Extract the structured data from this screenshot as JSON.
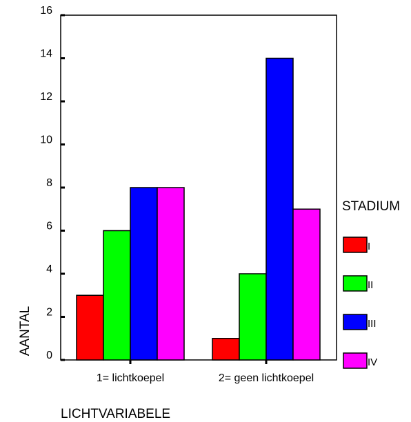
{
  "chart_data": {
    "type": "bar",
    "xlabel": "LICHTVARIABELE",
    "ylabel": "AANTAL",
    "ylim": [
      0,
      16
    ],
    "yticks": [
      0,
      2,
      4,
      6,
      8,
      10,
      12,
      14,
      16
    ],
    "categories": [
      "1= lichtkoepel",
      "2= geen lichtkoepel"
    ],
    "legend_title": "STADIUM",
    "legend_position": "right",
    "grid": false,
    "series": [
      {
        "name": "I",
        "color": "#ff0000",
        "values": [
          3,
          1
        ]
      },
      {
        "name": "II",
        "color": "#00ff00",
        "values": [
          6,
          4
        ]
      },
      {
        "name": "III",
        "color": "#0000ff",
        "values": [
          8,
          14
        ]
      },
      {
        "name": "IV",
        "color": "#ff00ff",
        "values": [
          8,
          7
        ]
      }
    ]
  }
}
